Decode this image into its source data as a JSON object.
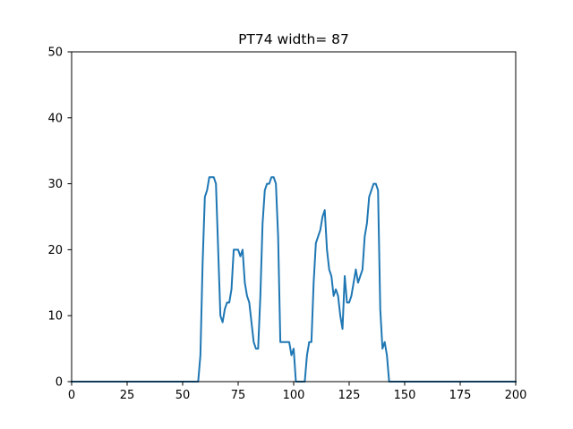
{
  "chart_data": {
    "type": "line",
    "title": "PT74 width= 87",
    "xlabel": "",
    "ylabel": "",
    "xlim": [
      0,
      200
    ],
    "ylim": [
      0,
      50
    ],
    "x_ticks": [
      0,
      25,
      50,
      75,
      100,
      125,
      150,
      175,
      200
    ],
    "y_ticks": [
      0,
      10,
      20,
      30,
      40,
      50
    ],
    "grid": false,
    "series": [
      {
        "color": "#1f77b4",
        "x": [
          0,
          56,
          57,
          58,
          59,
          60,
          61,
          62,
          63,
          64,
          65,
          66,
          67,
          68,
          69,
          70,
          71,
          72,
          73,
          74,
          75,
          76,
          77,
          78,
          79,
          80,
          81,
          82,
          83,
          84,
          85,
          86,
          87,
          88,
          89,
          90,
          91,
          92,
          93,
          94,
          95,
          96,
          97,
          98,
          99,
          100,
          101,
          102,
          103,
          104,
          105,
          106,
          107,
          108,
          109,
          110,
          111,
          112,
          113,
          114,
          115,
          116,
          117,
          118,
          119,
          120,
          121,
          122,
          123,
          124,
          125,
          126,
          127,
          128,
          129,
          130,
          131,
          132,
          133,
          134,
          135,
          136,
          137,
          138,
          139,
          140,
          141,
          142,
          143,
          144,
          145,
          200
        ],
        "y": [
          0,
          0,
          0,
          4,
          18,
          28,
          29,
          31,
          31,
          31,
          30,
          20,
          10,
          9,
          11,
          12,
          12,
          14,
          20,
          20,
          20,
          19,
          20,
          15,
          13,
          12,
          9,
          6,
          5,
          5,
          13,
          24,
          29,
          30,
          30,
          31,
          31,
          30,
          22,
          6,
          6,
          6,
          6,
          6,
          4,
          5,
          0,
          0,
          0,
          0,
          0,
          4,
          6,
          6,
          15,
          21,
          22,
          23,
          25,
          26,
          20,
          17,
          16,
          13,
          14,
          13,
          10,
          8,
          16,
          12,
          12,
          13,
          15,
          17,
          15,
          16,
          17,
          22,
          24,
          28,
          29,
          30,
          30,
          29,
          11,
          5,
          6,
          4,
          0,
          0,
          0,
          0
        ]
      }
    ]
  }
}
